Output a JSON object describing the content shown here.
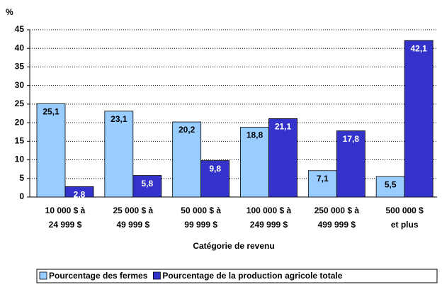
{
  "chart_data": {
    "type": "bar",
    "y_label": "%",
    "x_label": "Catégorie de revenu",
    "categories": [
      [
        "10 000 $ à",
        "24 999 $"
      ],
      [
        "25 000 $ à",
        "49 999 $"
      ],
      [
        "50 000 $ à",
        "99 999 $"
      ],
      [
        "100 000 $ à",
        "249 999 $"
      ],
      [
        "250 000 $ à",
        "499 999 $"
      ],
      [
        "500 000 $",
        "et plus"
      ]
    ],
    "series": [
      {
        "name": "Pourcentage des fermes",
        "color": "#99ccff",
        "values": [
          25.1,
          23.1,
          20.2,
          18.8,
          7.1,
          5.5
        ],
        "value_labels": [
          "25,1",
          "23,1",
          "20,2",
          "18,8",
          "7,1",
          "5,5"
        ]
      },
      {
        "name": "Pourcentage de la production agricole totale",
        "color": "#3333cc",
        "values": [
          2.8,
          5.8,
          9.8,
          21.1,
          17.8,
          42.1
        ],
        "value_labels": [
          "2,8",
          "5,8",
          "9,8",
          "21,1",
          "17,8",
          "42,1"
        ]
      }
    ],
    "ylim": [
      0,
      45
    ],
    "yticks": [
      0,
      5,
      10,
      15,
      20,
      25,
      30,
      35,
      40,
      45
    ],
    "grid": true
  }
}
